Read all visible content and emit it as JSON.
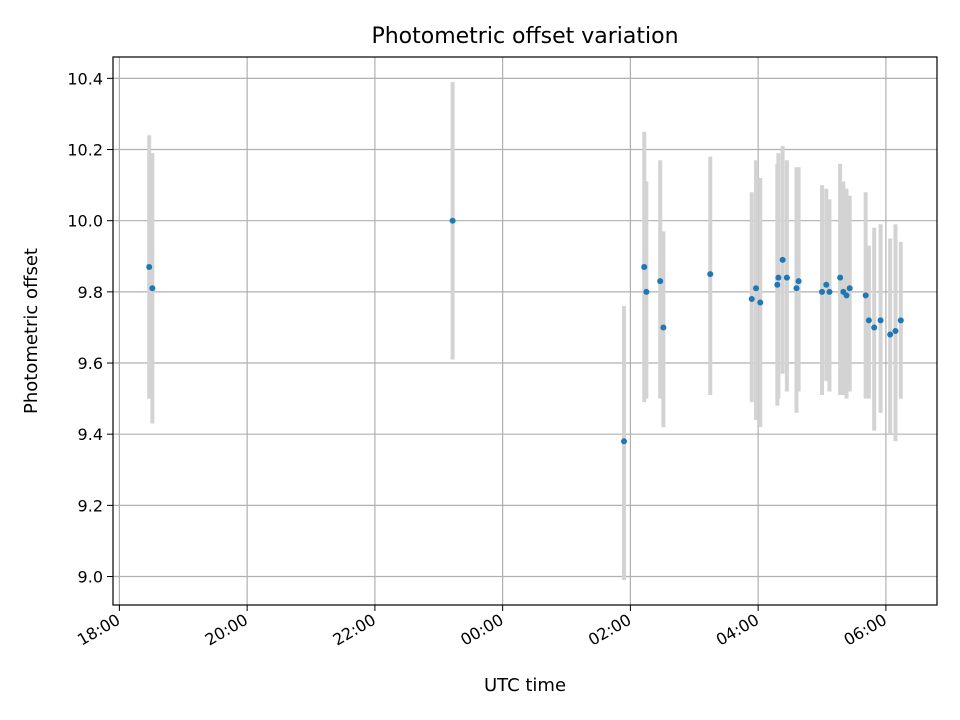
{
  "chart_data": {
    "type": "scatter",
    "title": "Photometric offset variation",
    "xlabel": "UTC time",
    "ylabel": "Photometric offset",
    "x_axis_kind": "time",
    "x_ticks": [
      "18:00",
      "20:00",
      "22:00",
      "00:00",
      "02:00",
      "04:00",
      "06:00"
    ],
    "x_tick_hours": [
      18,
      20,
      22,
      24,
      26,
      28,
      30
    ],
    "xlim_hours": [
      17.9,
      30.8
    ],
    "y_ticks": [
      "9.0",
      "9.2",
      "9.4",
      "9.6",
      "9.8",
      "10.0",
      "10.2",
      "10.4"
    ],
    "ylim": [
      8.92,
      10.46
    ],
    "grid": true,
    "marker_color": "#1f77b4",
    "errorbar_color": "#d3d3d3",
    "points": [
      {
        "t": "18:28",
        "y": 9.87,
        "ylo": 9.5,
        "yhi": 10.24
      },
      {
        "t": "18:31",
        "y": 9.81,
        "ylo": 9.43,
        "yhi": 10.19
      },
      {
        "t": "23:13",
        "y": 10.0,
        "ylo": 9.61,
        "yhi": 10.39
      },
      {
        "t": "01:54",
        "y": 9.38,
        "ylo": 8.99,
        "yhi": 9.76
      },
      {
        "t": "02:13",
        "y": 9.87,
        "ylo": 9.49,
        "yhi": 10.25
      },
      {
        "t": "02:15",
        "y": 9.8,
        "ylo": 9.5,
        "yhi": 10.11
      },
      {
        "t": "02:28",
        "y": 9.83,
        "ylo": 9.5,
        "yhi": 10.17
      },
      {
        "t": "02:31",
        "y": 9.7,
        "ylo": 9.42,
        "yhi": 9.97
      },
      {
        "t": "03:15",
        "y": 9.85,
        "ylo": 9.51,
        "yhi": 10.18
      },
      {
        "t": "03:54",
        "y": 9.78,
        "ylo": 9.49,
        "yhi": 10.08
      },
      {
        "t": "03:58",
        "y": 9.81,
        "ylo": 9.44,
        "yhi": 10.17
      },
      {
        "t": "04:02",
        "y": 9.77,
        "ylo": 9.42,
        "yhi": 10.12
      },
      {
        "t": "04:18",
        "y": 9.82,
        "ylo": 9.48,
        "yhi": 10.16
      },
      {
        "t": "04:19",
        "y": 9.84,
        "ylo": 9.5,
        "yhi": 10.19
      },
      {
        "t": "04:23",
        "y": 9.89,
        "ylo": 9.57,
        "yhi": 10.21
      },
      {
        "t": "04:27",
        "y": 9.84,
        "ylo": 9.52,
        "yhi": 10.17
      },
      {
        "t": "04:36",
        "y": 9.81,
        "ylo": 9.46,
        "yhi": 10.15
      },
      {
        "t": "04:38",
        "y": 9.83,
        "ylo": 9.52,
        "yhi": 10.15
      },
      {
        "t": "05:00",
        "y": 9.8,
        "ylo": 9.51,
        "yhi": 10.1
      },
      {
        "t": "05:04",
        "y": 9.82,
        "ylo": 9.55,
        "yhi": 10.09
      },
      {
        "t": "05:07",
        "y": 9.8,
        "ylo": 9.52,
        "yhi": 10.06
      },
      {
        "t": "05:17",
        "y": 9.84,
        "ylo": 9.51,
        "yhi": 10.16
      },
      {
        "t": "05:20",
        "y": 9.8,
        "ylo": 9.51,
        "yhi": 10.11
      },
      {
        "t": "05:23",
        "y": 9.79,
        "ylo": 9.5,
        "yhi": 10.09
      },
      {
        "t": "05:26",
        "y": 9.81,
        "ylo": 9.52,
        "yhi": 10.07
      },
      {
        "t": "05:41",
        "y": 9.79,
        "ylo": 9.5,
        "yhi": 10.08
      },
      {
        "t": "05:44",
        "y": 9.72,
        "ylo": 9.5,
        "yhi": 9.93
      },
      {
        "t": "05:49",
        "y": 9.7,
        "ylo": 9.41,
        "yhi": 9.98
      },
      {
        "t": "05:55",
        "y": 9.72,
        "ylo": 9.46,
        "yhi": 9.99
      },
      {
        "t": "06:04",
        "y": 9.68,
        "ylo": 9.4,
        "yhi": 9.95
      },
      {
        "t": "06:09",
        "y": 9.69,
        "ylo": 9.38,
        "yhi": 9.99
      },
      {
        "t": "06:14",
        "y": 9.72,
        "ylo": 9.5,
        "yhi": 9.94
      }
    ]
  }
}
